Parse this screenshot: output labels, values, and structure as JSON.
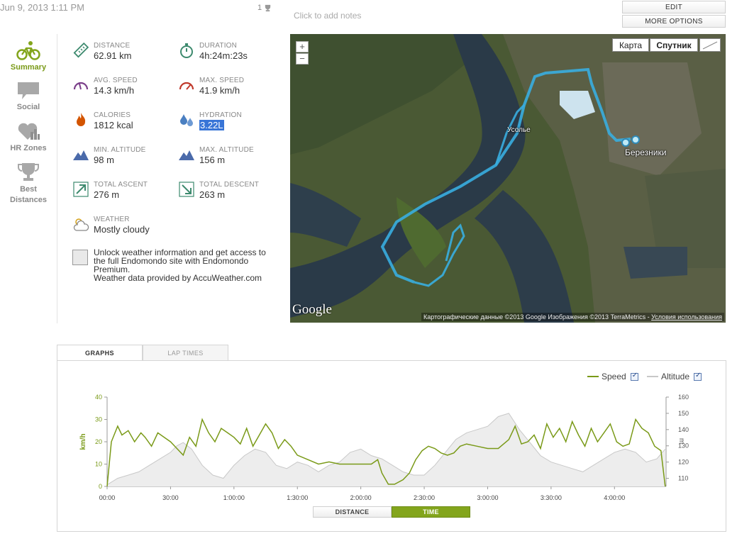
{
  "header": {
    "date": "Jun 9, 2013 1:11 PM",
    "likes_count": "1",
    "notes_placeholder": "Click to add notes",
    "edit_label": "EDIT",
    "more_options_label": "MORE OPTIONS"
  },
  "nav": {
    "items": [
      {
        "label": "Summary",
        "icon": "bicycle-icon",
        "active": true
      },
      {
        "label": "Social",
        "icon": "speech-bubble-icon"
      },
      {
        "label": "HR Zones",
        "icon": "heart-chart-icon"
      },
      {
        "label": "Best Distances",
        "icon": "trophy-icon"
      }
    ]
  },
  "stats": {
    "distance": {
      "label": "DISTANCE",
      "value": "62.91 km",
      "icon": "ruler-icon"
    },
    "duration": {
      "label": "DURATION",
      "value": "4h:24m:23s",
      "icon": "stopwatch-icon"
    },
    "avg_speed": {
      "label": "AVG. SPEED",
      "value": "14.3 km/h",
      "icon": "speedometer-icon"
    },
    "max_speed": {
      "label": "MAX. SPEED",
      "value": "41.9 km/h",
      "icon": "speedometer-max-icon"
    },
    "calories": {
      "label": "CALORIES",
      "value": "1812 kcal",
      "icon": "flame-icon"
    },
    "hydration": {
      "label": "HYDRATION",
      "value": "3.22L",
      "icon": "water-drops-icon"
    },
    "min_altitude": {
      "label": "MIN. ALTITUDE",
      "value": "98 m",
      "icon": "mountain-icon"
    },
    "max_altitude": {
      "label": "MAX. ALTITUDE",
      "value": "156 m",
      "icon": "mountain-icon"
    },
    "total_ascent": {
      "label": "TOTAL ASCENT",
      "value": "276 m",
      "icon": "arrow-up-right-icon"
    },
    "total_descent": {
      "label": "TOTAL DESCENT",
      "value": "263 m",
      "icon": "arrow-down-right-icon"
    },
    "weather": {
      "label": "WEATHER",
      "value": "Mostly cloudy",
      "icon": "cloud-sun-icon"
    }
  },
  "upgrade": {
    "line1": "Unlock weather information and get access to",
    "line2": "the full Endomondo site with Endomondo",
    "line3": "Premium.",
    "line4": "Weather data provided by AccuWeather.com"
  },
  "map": {
    "zoom_in": "+",
    "zoom_out": "−",
    "type_map": "Карта",
    "type_satellite": "Спутник",
    "city_1": "Усолье",
    "city_2": "Березники",
    "logo": "Google",
    "attribution": "Картографические данные ©2013 Google Изображения ©2013 TerraMetrics -",
    "terms_link": "Условия использования"
  },
  "graph": {
    "tabs": [
      "GRAPHS",
      "LAP TIMES"
    ],
    "legend_speed": "Speed",
    "legend_altitude": "Altitude",
    "toggle_distance": "DISTANCE",
    "toggle_time": "TIME",
    "colors": {
      "speed": "#7a9a18",
      "altitude": "#c8c8c8"
    }
  },
  "chart_data": {
    "type": "line",
    "x_unit": "minutes",
    "x_ticks": [
      "00:00",
      "30:00",
      "1:00:00",
      "1:30:00",
      "2:00:00",
      "2:30:00",
      "3:00:00",
      "3:30:00",
      "4:00:00"
    ],
    "xlim": [
      0,
      264.4
    ],
    "ylabel": "km/h",
    "ylabel2": "m",
    "ylim": [
      0,
      40
    ],
    "y2lim": [
      105,
      160
    ],
    "y_ticks": [
      0,
      10,
      20,
      30,
      40
    ],
    "y2_ticks": [
      110,
      120,
      130,
      140,
      150,
      160
    ],
    "series": [
      {
        "name": "Speed",
        "axis": "left",
        "x": [
          0,
          2,
          5,
          7,
          10,
          13,
          16,
          18,
          21,
          24,
          27,
          30,
          33,
          36,
          39,
          42,
          45,
          48,
          51,
          54,
          57,
          60,
          63,
          66,
          69,
          72,
          75,
          78,
          81,
          84,
          87,
          90,
          95,
          100,
          105,
          110,
          115,
          120,
          125,
          128,
          130,
          133,
          136,
          140,
          143,
          146,
          149,
          152,
          155,
          158,
          161,
          164,
          167,
          170,
          175,
          180,
          185,
          190,
          193,
          196,
          199,
          202,
          205,
          208,
          211,
          214,
          217,
          220,
          223,
          226,
          229,
          232,
          235,
          238,
          241,
          244,
          247,
          250,
          253,
          256,
          259,
          262,
          264
        ],
        "y": [
          0,
          20,
          27,
          23,
          25,
          20,
          24,
          22,
          18,
          24,
          22,
          20,
          17,
          14,
          22,
          18,
          30,
          24,
          20,
          26,
          24,
          22,
          19,
          26,
          18,
          23,
          28,
          24,
          17,
          21,
          18,
          14,
          12,
          10,
          11,
          10,
          10,
          10,
          10,
          12,
          6,
          1,
          1,
          3,
          6,
          12,
          16,
          18,
          17,
          15,
          14,
          15,
          18,
          19,
          18,
          17,
          17,
          21,
          27,
          19,
          20,
          23,
          17,
          28,
          22,
          26,
          20,
          29,
          23,
          18,
          26,
          20,
          24,
          28,
          20,
          18,
          19,
          30,
          26,
          24,
          18,
          16,
          0
        ]
      },
      {
        "name": "Altitude",
        "axis": "right",
        "x": [
          0,
          5,
          10,
          15,
          20,
          25,
          30,
          33,
          36,
          40,
          45,
          50,
          55,
          60,
          65,
          70,
          75,
          80,
          85,
          90,
          95,
          100,
          105,
          110,
          115,
          120,
          125,
          130,
          135,
          140,
          145,
          150,
          155,
          160,
          165,
          170,
          175,
          180,
          185,
          190,
          195,
          200,
          205,
          210,
          215,
          220,
          225,
          230,
          235,
          240,
          245,
          250,
          255,
          260,
          264
        ],
        "y": [
          106,
          110,
          112,
          114,
          118,
          122,
          126,
          130,
          132,
          128,
          118,
          112,
          110,
          118,
          124,
          128,
          126,
          118,
          116,
          120,
          118,
          114,
          118,
          120,
          126,
          128,
          124,
          122,
          118,
          114,
          112,
          112,
          118,
          126,
          134,
          138,
          140,
          142,
          148,
          150,
          140,
          132,
          124,
          120,
          118,
          116,
          114,
          118,
          122,
          126,
          128,
          126,
          120,
          122,
          128
        ]
      }
    ]
  }
}
